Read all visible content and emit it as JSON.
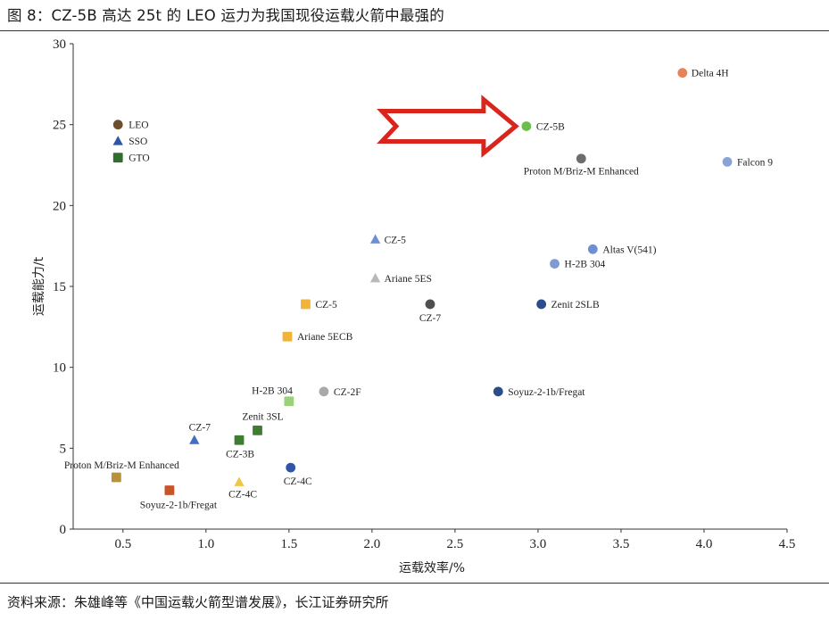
{
  "figure": {
    "title": "图 8：CZ-5B 高达 25t 的 LEO 运力为我国现役运载火箭中最强的",
    "source": "资料来源：朱雄峰等《中国运载火箭型谱发展》，长江证券研究所"
  },
  "chart_data": {
    "type": "scatter",
    "xlabel": "运载效率/%",
    "ylabel": "运载能力/t",
    "xlim": [
      0.2,
      4.5
    ],
    "ylim": [
      0,
      30
    ],
    "xticks": [
      "0.5",
      "1.0",
      "1.5",
      "2.0",
      "2.5",
      "3.0",
      "3.5",
      "4.0",
      "4.5"
    ],
    "yticks": [
      "0",
      "5",
      "10",
      "15",
      "20",
      "25",
      "30"
    ],
    "grid": false,
    "legend": {
      "placement": "top-left",
      "entries": [
        {
          "name": "LEO",
          "marker": "circle",
          "color": "#6b4f2a"
        },
        {
          "name": "SSO",
          "marker": "triangle",
          "color": "#2f56a6"
        },
        {
          "name": "GTO",
          "marker": "square",
          "color": "#2f6e2f"
        }
      ]
    },
    "annotation": {
      "type": "arrow",
      "points_to": "CZ-5B",
      "color": "#d9261c"
    },
    "points": [
      {
        "label": "Delta 4H",
        "x": 3.87,
        "y": 28.2,
        "marker": "circle",
        "color": "#e8825a"
      },
      {
        "label": "CZ-5B",
        "x": 2.93,
        "y": 24.9,
        "marker": "circle",
        "color": "#6cbf4a"
      },
      {
        "label": "Proton M/Briz-M Enhanced",
        "x": 3.26,
        "y": 22.9,
        "marker": "circle",
        "color": "#6d6d6d"
      },
      {
        "label": "Falcon 9",
        "x": 4.14,
        "y": 22.7,
        "marker": "circle",
        "color": "#8aa3d6"
      },
      {
        "label": "CZ-5",
        "x": 2.02,
        "y": 17.9,
        "marker": "triangle",
        "color": "#6f8fd0"
      },
      {
        "label": "Altas V(541)",
        "x": 3.33,
        "y": 17.3,
        "marker": "circle",
        "color": "#6f8fd0"
      },
      {
        "label": "H-2B 304",
        "x": 3.1,
        "y": 16.4,
        "marker": "circle",
        "color": "#7f9bd4"
      },
      {
        "label": "Ariane 5ES",
        "x": 2.02,
        "y": 15.5,
        "marker": "triangle",
        "color": "#b9b9b9"
      },
      {
        "label": "CZ-7",
        "x": 2.35,
        "y": 13.9,
        "marker": "circle",
        "color": "#4f4f4f"
      },
      {
        "label": "Zenit 2SLB",
        "x": 3.02,
        "y": 13.9,
        "marker": "circle",
        "color": "#2c4c8c"
      },
      {
        "label": "CZ-5",
        "x": 1.6,
        "y": 13.9,
        "marker": "square",
        "color": "#f0b43a"
      },
      {
        "label": "Ariane 5ECB",
        "x": 1.49,
        "y": 11.9,
        "marker": "square",
        "color": "#f0b43a"
      },
      {
        "label": "CZ-2F",
        "x": 1.71,
        "y": 8.5,
        "marker": "circle",
        "color": "#a9a9a9"
      },
      {
        "label": "H-2B 304",
        "x": 1.5,
        "y": 7.9,
        "marker": "square",
        "color": "#9bd17a"
      },
      {
        "label": "Soyuz-2-1b/Fregat",
        "x": 2.76,
        "y": 8.5,
        "marker": "circle",
        "color": "#2c4c8c"
      },
      {
        "label": "CZ-7",
        "x": 0.93,
        "y": 5.5,
        "marker": "triangle",
        "color": "#3f6fc0"
      },
      {
        "label": "Zenit 3SL",
        "x": 1.31,
        "y": 6.1,
        "marker": "square",
        "color": "#3f7d33"
      },
      {
        "label": "CZ-3B",
        "x": 1.2,
        "y": 5.5,
        "marker": "square",
        "color": "#3f7d33"
      },
      {
        "label": "CZ-4C",
        "x": 1.51,
        "y": 3.8,
        "marker": "circle",
        "color": "#2f56a6"
      },
      {
        "label": "CZ-4C",
        "x": 1.2,
        "y": 2.9,
        "marker": "triangle",
        "color": "#f0c64a"
      },
      {
        "label": "Proton M/Briz-M Enhanced",
        "x": 0.46,
        "y": 3.2,
        "marker": "square",
        "color": "#b8913a"
      },
      {
        "label": "Soyuz-2-1b/Fregat",
        "x": 0.78,
        "y": 2.4,
        "marker": "square",
        "color": "#c8552a"
      }
    ]
  }
}
